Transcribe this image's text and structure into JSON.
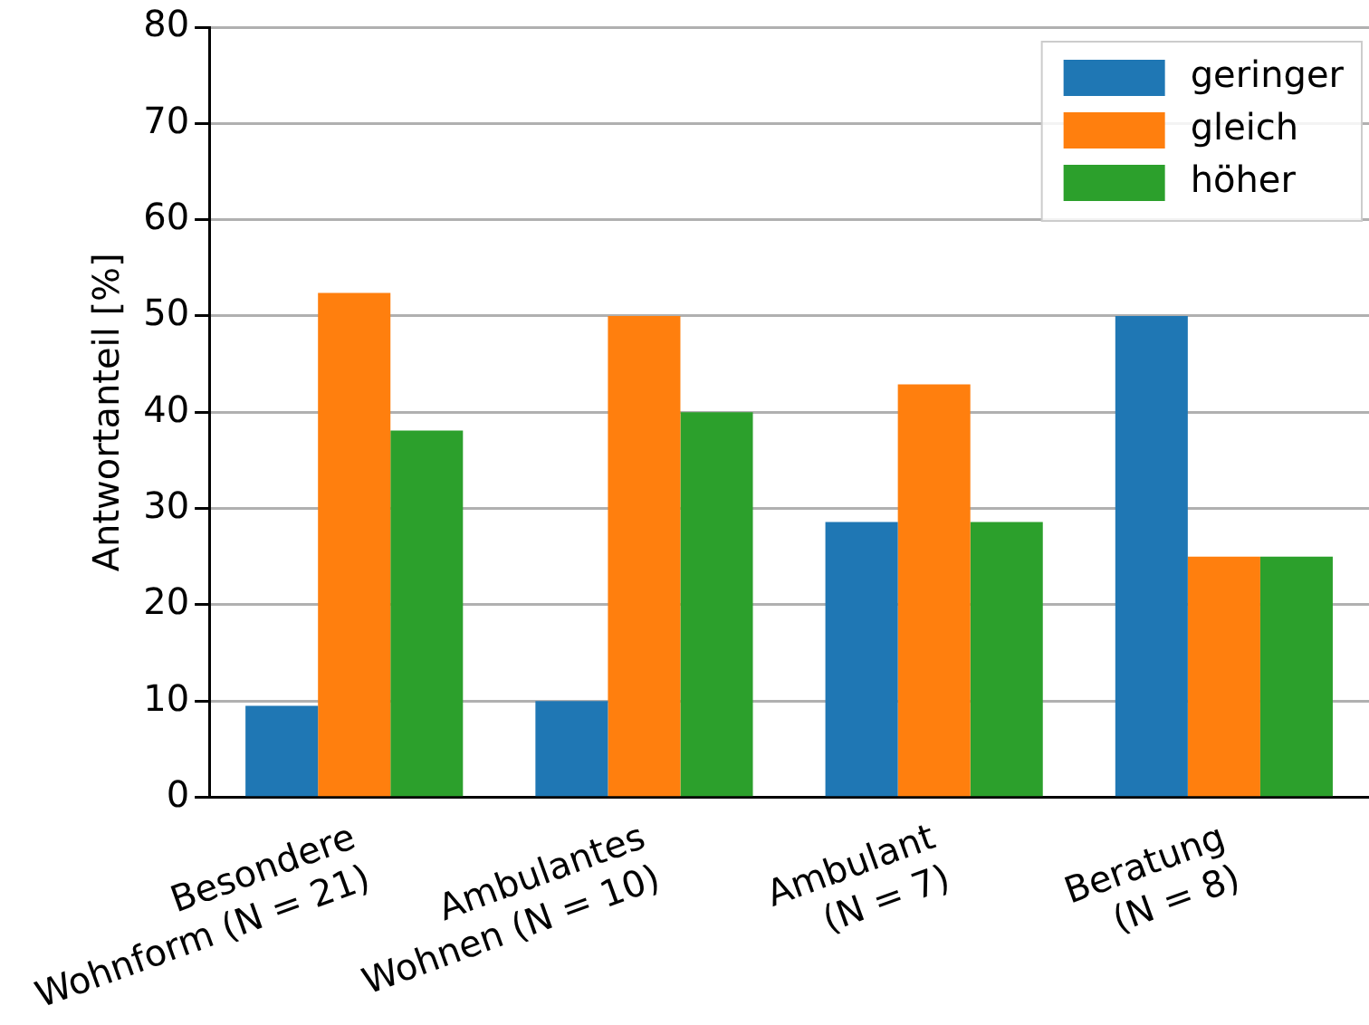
{
  "chart_data": {
    "type": "bar",
    "ylabel": "Antwortanteil [%]",
    "categories": [
      "Besondere\nWohnform (N = 21)",
      "Ambulantes\nWohnen (N = 10)",
      "Ambulant\n(N = 7)",
      "Beratung\n(N = 8)"
    ],
    "series": [
      {
        "name": "geringer",
        "color": "#1f77b4",
        "values": [
          9.5,
          10,
          28.6,
          50
        ]
      },
      {
        "name": "gleich",
        "color": "#ff7f0e",
        "values": [
          52.4,
          50,
          42.9,
          25
        ]
      },
      {
        "name": "höher",
        "color": "#2ca02c",
        "values": [
          38.1,
          40,
          28.6,
          25
        ]
      }
    ],
    "ylim": [
      0,
      80
    ],
    "yticks": [
      0,
      10,
      20,
      30,
      40,
      50,
      60,
      70,
      80
    ],
    "grid": "y",
    "legend": "top right"
  }
}
